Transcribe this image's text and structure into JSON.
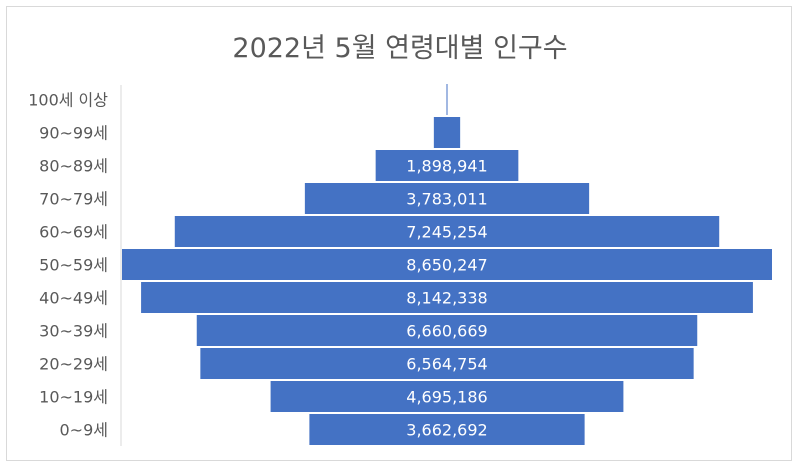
{
  "chart_data": {
    "type": "bar",
    "orientation": "horizontal",
    "style": "population-pyramid (centered bars)",
    "title": "2022년 5월 연령대별 인구수",
    "xlabel": "",
    "ylabel": "",
    "categories": [
      "100세 이상",
      "90~99세",
      "80~89세",
      "70~79세",
      "60~69세",
      "50~59세",
      "40~49세",
      "30~39세",
      "20~29세",
      "10~19세",
      "0~9세"
    ],
    "values": [
      8000,
      350000,
      1898941,
      3783011,
      7245254,
      8650247,
      8142338,
      6660669,
      6564754,
      4695186,
      3662692
    ],
    "data_labels": [
      "",
      "",
      "1,898,941",
      "3,783,011",
      "7,245,254",
      "8,650,247",
      "8,142,338",
      "6,660,669",
      "6,564,754",
      "4,695,186",
      "3,662,692"
    ],
    "xlim": [
      -4325124,
      4325124
    ],
    "grid": false,
    "legend": "none",
    "colors": {
      "bar": "#4472c4",
      "text": "#595959",
      "frame": "#d9d9d9",
      "axis": "#d9d9d9",
      "label": "#ffffff"
    }
  }
}
